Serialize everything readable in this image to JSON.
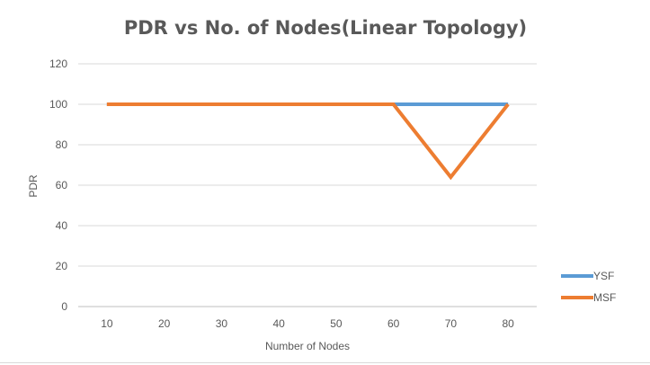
{
  "chart_data": {
    "type": "line",
    "title": "PDR vs No. of Nodes(Linear Topology)",
    "xlabel": "Number of Nodes",
    "ylabel": "PDR",
    "categories": [
      10,
      20,
      30,
      40,
      50,
      60,
      70,
      80
    ],
    "ylim": [
      0,
      120
    ],
    "yticks": [
      0,
      20,
      40,
      60,
      80,
      100,
      120
    ],
    "grid": true,
    "legend_position": "right",
    "series": [
      {
        "name": "YSF",
        "color": "#5b9bd5",
        "values": [
          100,
          100,
          100,
          100,
          100,
          100,
          100,
          100
        ]
      },
      {
        "name": "MSF",
        "color": "#ed7d31",
        "values": [
          100,
          100,
          100,
          100,
          100,
          100,
          64,
          100
        ]
      }
    ]
  }
}
